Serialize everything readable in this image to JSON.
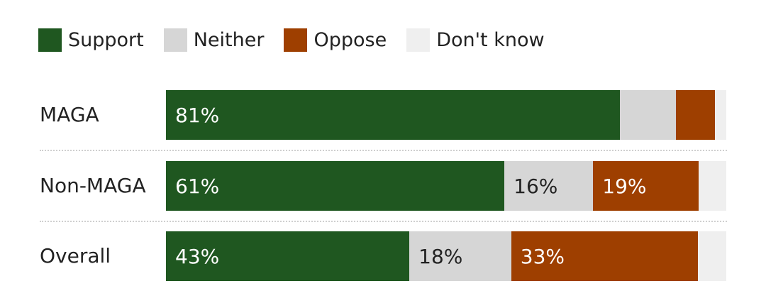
{
  "chart_data": {
    "type": "stacked-bar-horizontal",
    "legend_position": "top-left",
    "legend": [
      {
        "key": "support",
        "label": "Support",
        "color": "#1f5720"
      },
      {
        "key": "neither",
        "label": "Neither",
        "color": "#d6d6d6"
      },
      {
        "key": "oppose",
        "label": "Oppose",
        "color": "#9e3f00"
      },
      {
        "key": "dontknow",
        "label": "Don't know",
        "color": "#efefef"
      }
    ],
    "rows": [
      {
        "name": "MAGA",
        "values": {
          "support": 81,
          "neither": 10,
          "oppose": 7,
          "dontknow": 2
        },
        "labels": {
          "support": "81%",
          "neither": "",
          "oppose": "",
          "dontknow": ""
        }
      },
      {
        "name": "Non-MAGA",
        "values": {
          "support": 61,
          "neither": 16,
          "oppose": 19,
          "dontknow": 5
        },
        "labels": {
          "support": "61%",
          "neither": "16%",
          "oppose": "19%",
          "dontknow": ""
        }
      },
      {
        "name": "Overall",
        "values": {
          "support": 43,
          "neither": 18,
          "oppose": 33,
          "dontknow": 5
        },
        "labels": {
          "support": "43%",
          "neither": "18%",
          "oppose": "33%",
          "dontknow": ""
        }
      }
    ],
    "xlim": [
      0,
      100
    ]
  }
}
